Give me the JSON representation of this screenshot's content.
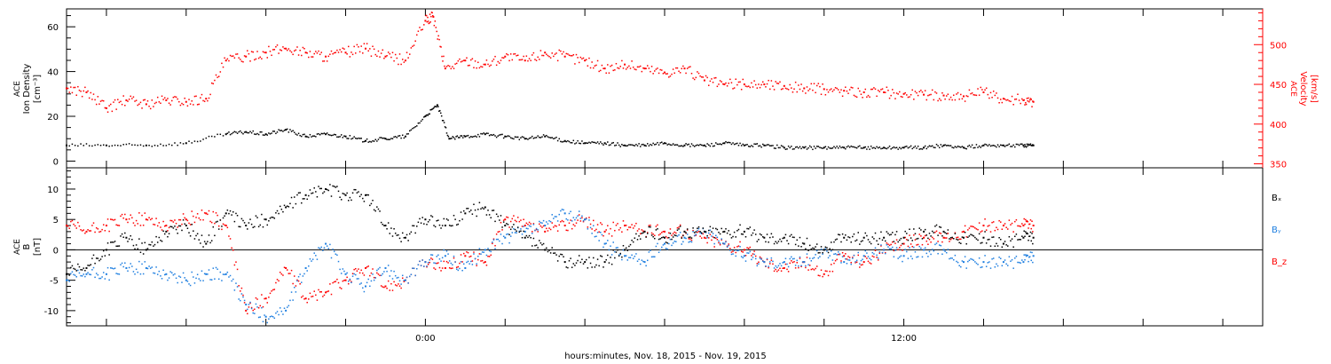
{
  "chart_data": [
    {
      "type": "scatter",
      "panel": "top",
      "ylabel_left": [
        "ACE",
        "Ion Density",
        "[cm⁻³]"
      ],
      "ylabel_right": [
        "ACE",
        "Velocity",
        "[km/s]"
      ],
      "ylim_left": [
        -3,
        68
      ],
      "ylim_right": [
        345,
        545
      ],
      "yticks_left": [
        "0",
        "20",
        "40",
        "60"
      ],
      "yticks_right": [
        "350",
        "400",
        "450",
        "500"
      ],
      "series": [
        {
          "axis": "left",
          "color": "#000000",
          "points": [
            [
              -9.0,
              7
            ],
            [
              -8.0,
              7
            ],
            [
              -7.0,
              7
            ],
            [
              -6.0,
              8
            ],
            [
              -5.0,
              12
            ],
            [
              -4.5,
              13
            ],
            [
              -4.0,
              12
            ],
            [
              -3.5,
              14
            ],
            [
              -3.0,
              11
            ],
            [
              -2.5,
              12
            ],
            [
              -2.0,
              11
            ],
            [
              -1.5,
              9
            ],
            [
              -1.0,
              10
            ],
            [
              -0.5,
              11
            ],
            [
              0.0,
              20
            ],
            [
              0.3,
              25
            ],
            [
              0.6,
              10
            ],
            [
              1.0,
              11
            ],
            [
              1.5,
              12
            ],
            [
              2.0,
              11
            ],
            [
              2.5,
              10
            ],
            [
              3.0,
              11
            ],
            [
              3.5,
              9
            ],
            [
              4.0,
              8
            ],
            [
              4.5,
              8
            ],
            [
              5.0,
              7
            ],
            [
              5.5,
              7
            ],
            [
              6.0,
              8
            ],
            [
              6.5,
              7
            ],
            [
              7.0,
              7
            ],
            [
              7.5,
              8
            ],
            [
              8.0,
              7
            ],
            [
              8.5,
              7
            ],
            [
              9.0,
              6
            ],
            [
              9.5,
              6
            ],
            [
              10.0,
              6
            ],
            [
              10.5,
              6
            ],
            [
              11.0,
              6
            ],
            [
              11.5,
              6
            ],
            [
              12.0,
              6
            ],
            [
              12.5,
              6
            ],
            [
              13.0,
              7
            ],
            [
              13.5,
              6
            ],
            [
              14.0,
              7
            ],
            [
              14.5,
              7
            ],
            [
              15.0,
              7
            ],
            [
              15.25,
              7
            ]
          ]
        },
        {
          "axis": "right",
          "color": "#ff0000",
          "points": [
            [
              -9.0,
              445
            ],
            [
              -8.5,
              440
            ],
            [
              -8.0,
              420
            ],
            [
              -7.5,
              430
            ],
            [
              -7.0,
              425
            ],
            [
              -6.5,
              430
            ],
            [
              -6.0,
              428
            ],
            [
              -5.5,
              432
            ],
            [
              -5.0,
              480
            ],
            [
              -4.5,
              485
            ],
            [
              -4.0,
              490
            ],
            [
              -3.5,
              495
            ],
            [
              -3.0,
              490
            ],
            [
              -2.5,
              485
            ],
            [
              -2.0,
              490
            ],
            [
              -1.5,
              495
            ],
            [
              -1.0,
              485
            ],
            [
              -0.5,
              480
            ],
            [
              0.0,
              530
            ],
            [
              0.2,
              535
            ],
            [
              0.5,
              470
            ],
            [
              1.0,
              480
            ],
            [
              1.5,
              475
            ],
            [
              2.0,
              485
            ],
            [
              2.5,
              480
            ],
            [
              3.0,
              490
            ],
            [
              3.5,
              485
            ],
            [
              4.0,
              480
            ],
            [
              4.5,
              470
            ],
            [
              5.0,
              475
            ],
            [
              5.5,
              470
            ],
            [
              6.0,
              465
            ],
            [
              6.5,
              470
            ],
            [
              7.0,
              455
            ],
            [
              7.5,
              450
            ],
            [
              8.0,
              450
            ],
            [
              8.5,
              450
            ],
            [
              9.0,
              448
            ],
            [
              9.5,
              445
            ],
            [
              10.0,
              444
            ],
            [
              10.5,
              442
            ],
            [
              11.0,
              440
            ],
            [
              11.5,
              440
            ],
            [
              12.0,
              438
            ],
            [
              12.5,
              437
            ],
            [
              13.0,
              436
            ],
            [
              13.5,
              435
            ],
            [
              14.0,
              440
            ],
            [
              14.5,
              432
            ],
            [
              15.0,
              430
            ],
            [
              15.25,
              428
            ]
          ]
        }
      ]
    },
    {
      "type": "scatter",
      "panel": "bottom",
      "ylabel": [
        "ACE",
        "B",
        "[nT]"
      ],
      "ylim": [
        -12.5,
        13.5
      ],
      "yticks": [
        "-10",
        "-5",
        "0",
        "5",
        "10"
      ],
      "zero_line": true,
      "legend": [
        {
          "name": "Bₓ",
          "color": "#000000"
        },
        {
          "name": "Bᵧ",
          "color": "#1f7fe0"
        },
        {
          "name": "B_z",
          "color": "#ff0000"
        }
      ],
      "series": [
        {
          "name": "Bₓ",
          "color": "#000000",
          "points": [
            [
              -9.0,
              -4
            ],
            [
              -8.5,
              -3
            ],
            [
              -8.0,
              0
            ],
            [
              -7.5,
              2
            ],
            [
              -7.0,
              0
            ],
            [
              -6.5,
              3
            ],
            [
              -6.0,
              4
            ],
            [
              -5.5,
              1
            ],
            [
              -5.0,
              6
            ],
            [
              -4.5,
              4
            ],
            [
              -4.0,
              5
            ],
            [
              -3.5,
              7
            ],
            [
              -3.0,
              9
            ],
            [
              -2.5,
              10
            ],
            [
              -2.0,
              9
            ],
            [
              -1.5,
              9
            ],
            [
              -1.0,
              4
            ],
            [
              -0.5,
              2
            ],
            [
              0.0,
              5
            ],
            [
              0.5,
              4
            ],
            [
              1.0,
              6
            ],
            [
              1.5,
              7
            ],
            [
              2.0,
              4
            ],
            [
              2.5,
              2
            ],
            [
              3.0,
              0
            ],
            [
              3.5,
              -2
            ],
            [
              4.0,
              -2
            ],
            [
              4.5,
              -2
            ],
            [
              5.0,
              0
            ],
            [
              5.5,
              3
            ],
            [
              6.0,
              2
            ],
            [
              6.5,
              3
            ],
            [
              7.0,
              3
            ],
            [
              7.5,
              3
            ],
            [
              8.0,
              3
            ],
            [
              8.5,
              2
            ],
            [
              9.0,
              2
            ],
            [
              9.5,
              1
            ],
            [
              10.0,
              0
            ],
            [
              10.5,
              2
            ],
            [
              11.0,
              2
            ],
            [
              11.5,
              2
            ],
            [
              12.0,
              2
            ],
            [
              12.5,
              3
            ],
            [
              13.0,
              3
            ],
            [
              13.5,
              2
            ],
            [
              14.0,
              2
            ],
            [
              14.5,
              1
            ],
            [
              15.0,
              2
            ],
            [
              15.25,
              2
            ]
          ]
        },
        {
          "name": "Bᵧ",
          "color": "#1f7fe0",
          "points": [
            [
              -9.0,
              -5
            ],
            [
              -8.5,
              -4
            ],
            [
              -8.0,
              -4
            ],
            [
              -7.5,
              -3
            ],
            [
              -7.0,
              -3
            ],
            [
              -6.5,
              -4
            ],
            [
              -6.0,
              -5
            ],
            [
              -5.5,
              -4
            ],
            [
              -5.0,
              -4
            ],
            [
              -4.5,
              -9
            ],
            [
              -4.0,
              -11
            ],
            [
              -3.5,
              -10
            ],
            [
              -3.0,
              -3
            ],
            [
              -2.5,
              1
            ],
            [
              -2.0,
              -4
            ],
            [
              -1.5,
              -6
            ],
            [
              -1.0,
              -3
            ],
            [
              -0.5,
              -5
            ],
            [
              0.0,
              -2
            ],
            [
              0.5,
              -1
            ],
            [
              1.0,
              -3
            ],
            [
              1.5,
              0
            ],
            [
              2.0,
              2
            ],
            [
              2.5,
              3
            ],
            [
              3.0,
              4
            ],
            [
              3.5,
              6
            ],
            [
              4.0,
              5
            ],
            [
              4.5,
              1
            ],
            [
              5.0,
              -1
            ],
            [
              5.5,
              -2
            ],
            [
              6.0,
              1
            ],
            [
              6.5,
              2
            ],
            [
              7.0,
              3
            ],
            [
              7.5,
              1
            ],
            [
              8.0,
              -1
            ],
            [
              8.5,
              -2
            ],
            [
              9.0,
              -2
            ],
            [
              9.5,
              -2
            ],
            [
              10.0,
              0
            ],
            [
              10.5,
              -2
            ],
            [
              11.0,
              -1
            ],
            [
              11.5,
              0
            ],
            [
              12.0,
              -1
            ],
            [
              12.5,
              0
            ],
            [
              13.0,
              0
            ],
            [
              13.5,
              -2
            ],
            [
              14.0,
              -2
            ],
            [
              14.5,
              -2
            ],
            [
              15.0,
              -2
            ],
            [
              15.25,
              -1
            ]
          ]
        },
        {
          "name": "B_z",
          "color": "#ff0000",
          "points": [
            [
              -9.0,
              4
            ],
            [
              -8.5,
              3
            ],
            [
              -8.0,
              4
            ],
            [
              -7.5,
              5
            ],
            [
              -7.0,
              5
            ],
            [
              -6.5,
              4
            ],
            [
              -6.0,
              5
            ],
            [
              -5.5,
              6
            ],
            [
              -5.0,
              4
            ],
            [
              -4.5,
              -10
            ],
            [
              -4.0,
              -8
            ],
            [
              -3.5,
              -3
            ],
            [
              -3.0,
              -8
            ],
            [
              -2.5,
              -7
            ],
            [
              -2.0,
              -5
            ],
            [
              -1.5,
              -3
            ],
            [
              -1.0,
              -6
            ],
            [
              -0.5,
              -5
            ],
            [
              0.0,
              -2
            ],
            [
              0.5,
              -3
            ],
            [
              1.0,
              -1
            ],
            [
              1.5,
              -2
            ],
            [
              2.0,
              5
            ],
            [
              2.5,
              4
            ],
            [
              3.0,
              3
            ],
            [
              3.5,
              4
            ],
            [
              4.0,
              5
            ],
            [
              4.5,
              3
            ],
            [
              5.0,
              4
            ],
            [
              5.5,
              3
            ],
            [
              6.0,
              3
            ],
            [
              6.5,
              3
            ],
            [
              7.0,
              2
            ],
            [
              7.5,
              1
            ],
            [
              8.0,
              0
            ],
            [
              8.5,
              -2
            ],
            [
              9.0,
              -3
            ],
            [
              9.5,
              -2
            ],
            [
              10.0,
              -4
            ],
            [
              10.5,
              -1
            ],
            [
              11.0,
              -2
            ],
            [
              11.5,
              0
            ],
            [
              12.0,
              1
            ],
            [
              12.5,
              2
            ],
            [
              13.0,
              2
            ],
            [
              13.5,
              3
            ],
            [
              14.0,
              4
            ],
            [
              14.5,
              4
            ],
            [
              15.0,
              4
            ],
            [
              15.25,
              4
            ]
          ]
        }
      ]
    }
  ],
  "x_axis": {
    "unit": "hours relative to 0:00 on Nov. 19, 2015",
    "xlim": [
      -9.0,
      21.0
    ],
    "tick_labels": [
      {
        "x": 0,
        "label": "0:00"
      },
      {
        "x": 12,
        "label": "12:00"
      }
    ],
    "major_ticks_every_hours": 2,
    "xlabel": "hours:minutes, Nov. 18, 2015 - Nov. 19, 2015"
  }
}
